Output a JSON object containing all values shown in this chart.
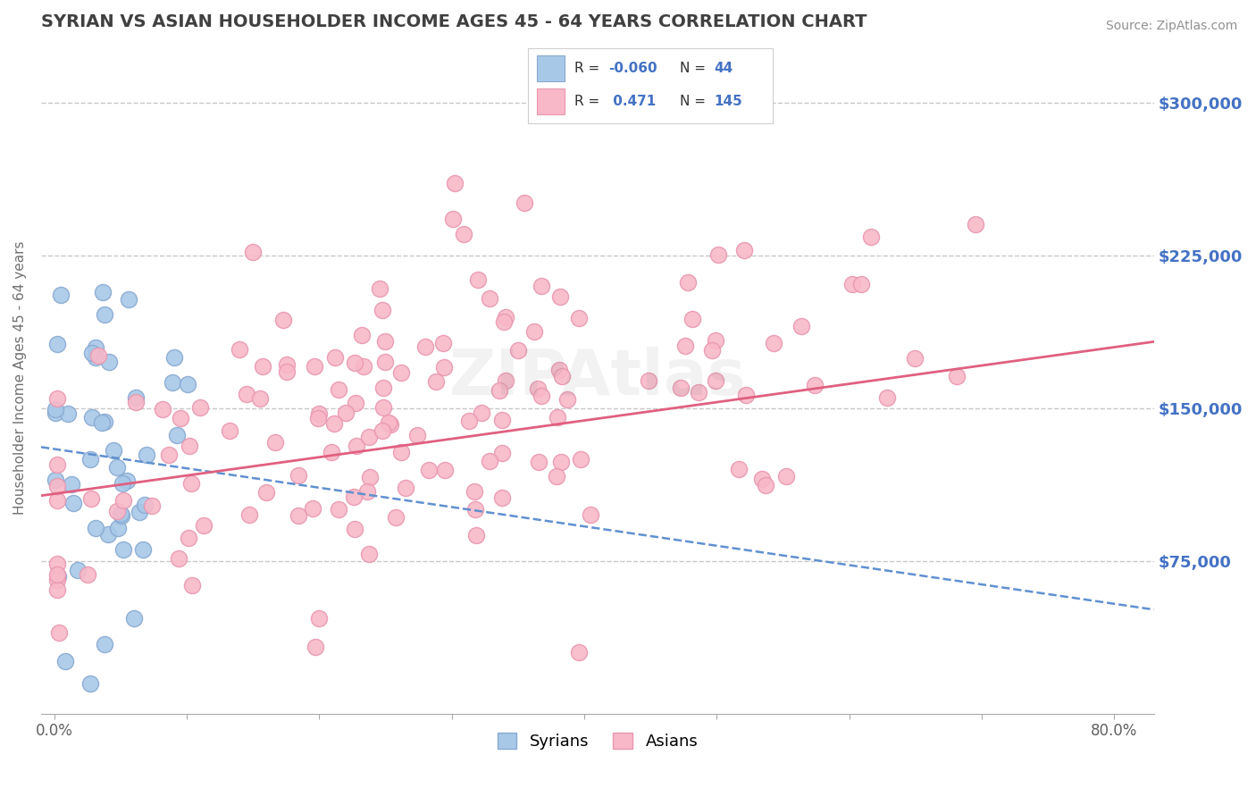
{
  "title": "SYRIAN VS ASIAN HOUSEHOLDER INCOME AGES 45 - 64 YEARS CORRELATION CHART",
  "source": "Source: ZipAtlas.com",
  "ylabel": "Householder Income Ages 45 - 64 years",
  "xlabel_ticks_show": [
    "0.0%",
    "80.0%"
  ],
  "ytick_labels": [
    "$75,000",
    "$150,000",
    "$225,000",
    "$300,000"
  ],
  "ytick_values": [
    75000,
    150000,
    225000,
    300000
  ],
  "ylim": [
    0,
    330000
  ],
  "xlim": [
    -0.01,
    0.83
  ],
  "syrian_color": "#a8c8e8",
  "syrian_edge": "#88aad0",
  "asian_color": "#f8b8c8",
  "asian_edge": "#e898b0",
  "bg_color": "#ffffff",
  "grid_color": "#c8c8c8",
  "title_color": "#404040",
  "source_color": "#909090",
  "ytick_color": "#4472c4",
  "syrian_R": -0.06,
  "asian_R": 0.471,
  "syrian_N": 44,
  "asian_N": 145,
  "syr_trend_color": "#6090d0",
  "asian_trend_color": "#e06080",
  "legend_text_color": "#4472c4",
  "legend_label_color": "#303030"
}
